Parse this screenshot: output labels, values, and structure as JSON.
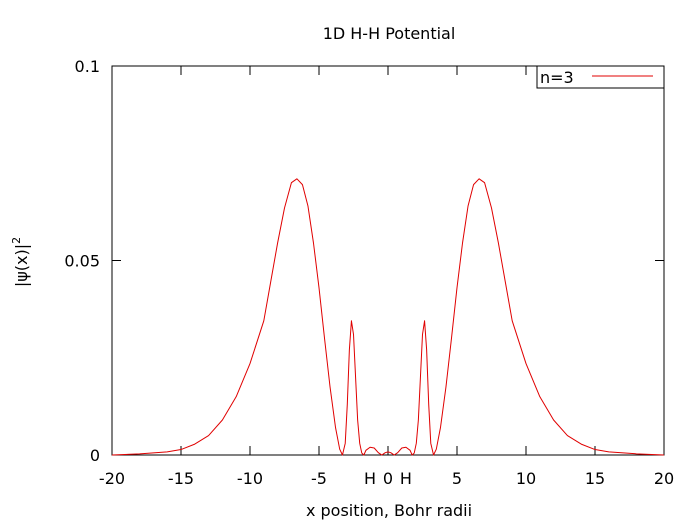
{
  "chart_data": {
    "type": "line",
    "title": "1D H-H Potential",
    "xlabel": "x position, Bohr radii",
    "ylabel_base": "|ψ(x)|",
    "ylabel_sup": "2",
    "xlim": [
      -20,
      20
    ],
    "ylim": [
      0,
      0.1
    ],
    "x_ticks": [
      {
        "value": -20,
        "label": "-20"
      },
      {
        "value": -15,
        "label": "-15"
      },
      {
        "value": -10,
        "label": "-10"
      },
      {
        "value": -5,
        "label": "-5"
      },
      {
        "value": 0,
        "label": "0"
      },
      {
        "value": 5,
        "label": "5"
      },
      {
        "value": 10,
        "label": "10"
      },
      {
        "value": 15,
        "label": "15"
      },
      {
        "value": 20,
        "label": "20"
      }
    ],
    "extra_x_labels": [
      {
        "value": -1.3,
        "label": "H"
      },
      {
        "value": 1.3,
        "label": "H"
      }
    ],
    "y_ticks": [
      {
        "value": 0,
        "label": "0"
      },
      {
        "value": 0.05,
        "label": "0.05"
      },
      {
        "value": 0.1,
        "label": "0.1"
      }
    ],
    "grid": false,
    "legend_position": "top-right",
    "series": [
      {
        "name": "n=3",
        "color": "#e00000",
        "points": [
          [
            -20,
            0.0
          ],
          [
            -18,
            0.0003
          ],
          [
            -16,
            0.0008
          ],
          [
            -15,
            0.0014
          ],
          [
            -14,
            0.0028
          ],
          [
            -13,
            0.005
          ],
          [
            -12,
            0.009
          ],
          [
            -11,
            0.015
          ],
          [
            -10,
            0.0235
          ],
          [
            -9,
            0.0345
          ],
          [
            -8.5,
            0.0445
          ],
          [
            -8,
            0.0545
          ],
          [
            -7.5,
            0.0635
          ],
          [
            -7,
            0.07
          ],
          [
            -6.6,
            0.071
          ],
          [
            -6.2,
            0.0695
          ],
          [
            -5.8,
            0.064
          ],
          [
            -5.4,
            0.0545
          ],
          [
            -5,
            0.043
          ],
          [
            -4.6,
            0.03
          ],
          [
            -4.2,
            0.0175
          ],
          [
            -3.8,
            0.007
          ],
          [
            -3.5,
            0.0015
          ],
          [
            -3.3,
            0.0
          ],
          [
            -3.1,
            0.003
          ],
          [
            -2.95,
            0.013
          ],
          [
            -2.8,
            0.027
          ],
          [
            -2.65,
            0.0345
          ],
          [
            -2.5,
            0.031
          ],
          [
            -2.35,
            0.02
          ],
          [
            -2.2,
            0.009
          ],
          [
            -2.05,
            0.003
          ],
          [
            -1.9,
            0.0005
          ],
          [
            -1.75,
            0.0
          ],
          [
            -1.6,
            0.0012
          ],
          [
            -1.3,
            0.002
          ],
          [
            -1.0,
            0.0018
          ],
          [
            -0.7,
            0.0006
          ],
          [
            -0.45,
            0.0
          ],
          [
            -0.2,
            0.0006
          ],
          [
            0,
            0.0008
          ],
          [
            0.2,
            0.0006
          ],
          [
            0.45,
            0.0
          ],
          [
            0.7,
            0.0006
          ],
          [
            1.0,
            0.0018
          ],
          [
            1.3,
            0.002
          ],
          [
            1.6,
            0.0012
          ],
          [
            1.75,
            0.0
          ],
          [
            1.9,
            0.0005
          ],
          [
            2.05,
            0.003
          ],
          [
            2.2,
            0.009
          ],
          [
            2.35,
            0.02
          ],
          [
            2.5,
            0.031
          ],
          [
            2.65,
            0.0345
          ],
          [
            2.8,
            0.027
          ],
          [
            2.95,
            0.013
          ],
          [
            3.1,
            0.003
          ],
          [
            3.3,
            0.0
          ],
          [
            3.5,
            0.0015
          ],
          [
            3.8,
            0.007
          ],
          [
            4.2,
            0.0175
          ],
          [
            4.6,
            0.03
          ],
          [
            5,
            0.043
          ],
          [
            5.4,
            0.0545
          ],
          [
            5.8,
            0.064
          ],
          [
            6.2,
            0.0695
          ],
          [
            6.6,
            0.071
          ],
          [
            7,
            0.07
          ],
          [
            7.5,
            0.0635
          ],
          [
            8,
            0.0545
          ],
          [
            8.5,
            0.0445
          ],
          [
            9,
            0.0345
          ],
          [
            10,
            0.0235
          ],
          [
            11,
            0.015
          ],
          [
            12,
            0.009
          ],
          [
            13,
            0.005
          ],
          [
            14,
            0.0028
          ],
          [
            15,
            0.0014
          ],
          [
            16,
            0.0008
          ],
          [
            18,
            0.0003
          ],
          [
            20,
            0.0
          ]
        ]
      }
    ]
  }
}
